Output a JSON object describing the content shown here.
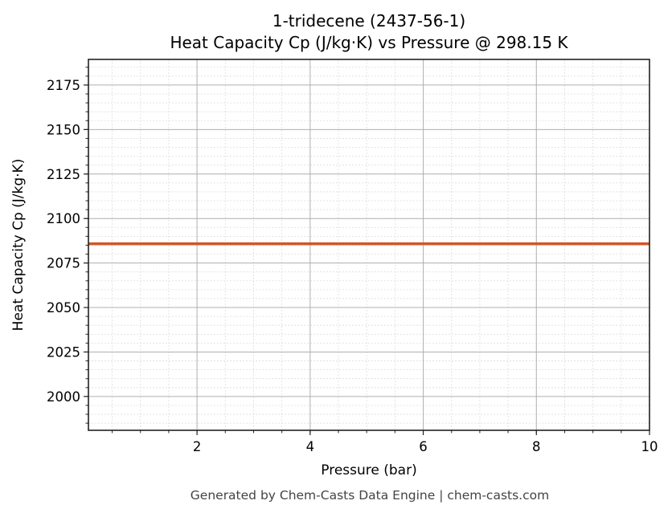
{
  "header": {
    "title_line1": "1-tridecene (2437-56-1)",
    "title_line2": "Heat Capacity Cp (J/kg·K) vs Pressure @ 298.15 K"
  },
  "footer": {
    "text": "Generated by Chem-Casts Data Engine | chem-casts.com"
  },
  "colors": {
    "line": "#d45522",
    "major_grid": "#b0b0b0",
    "minor_grid": "#dddddd",
    "axis": "#222222",
    "footer_text": "#444444"
  },
  "chart_data": {
    "type": "line",
    "title": "1-tridecene (2437-56-1)\nHeat Capacity Cp (J/kg·K) vs Pressure @ 298.15 K",
    "xlabel": "Pressure (bar)",
    "ylabel": "Heat Capacity Cp (J/kg·K)",
    "xlim": [
      0.08,
      10
    ],
    "ylim": [
      1981,
      2189.4
    ],
    "xticks": [
      2,
      4,
      6,
      8,
      10
    ],
    "xtick_labels": [
      "2",
      "4",
      "6",
      "8",
      "10"
    ],
    "yticks": [
      2000,
      2025,
      2050,
      2075,
      2100,
      2125,
      2150,
      2175
    ],
    "ytick_labels": [
      "2000",
      "2025",
      "2050",
      "2075",
      "2100",
      "2125",
      "2150",
      "2175"
    ],
    "grid": true,
    "minor_grid": true,
    "legend": null,
    "series": [
      {
        "name": "Cp",
        "x": [
          0.08,
          1,
          2,
          3,
          4,
          5,
          6,
          7,
          8,
          9,
          10
        ],
        "values": [
          2085.8,
          2085.8,
          2085.8,
          2085.8,
          2085.8,
          2085.8,
          2085.8,
          2085.8,
          2085.8,
          2085.8,
          2085.8
        ]
      }
    ]
  }
}
